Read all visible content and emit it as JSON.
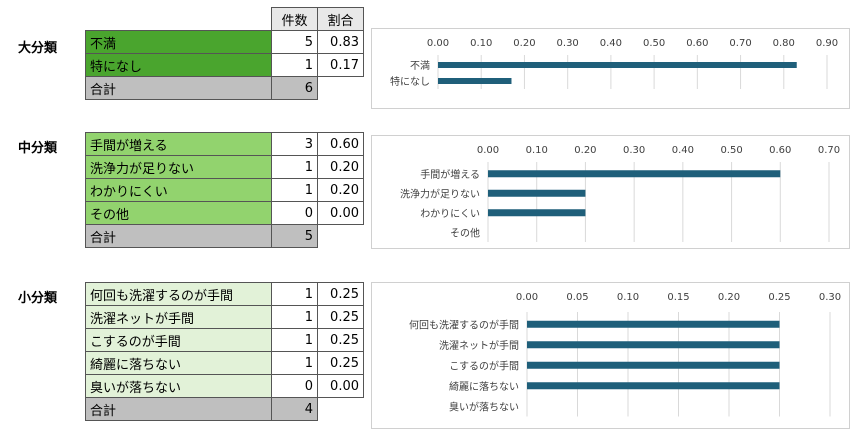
{
  "colors": {
    "dark_green": "#4aa52e",
    "mid_green": "#92d36e",
    "light_green": "#e2f2d8",
    "total_gray": "#bfbfbf",
    "bar": "#1f5f7a"
  },
  "header": {
    "count": "件数",
    "ratio": "割合"
  },
  "large": {
    "label": "大分類",
    "rows": [
      {
        "name": "不満",
        "count": "5",
        "ratio": "0.83"
      },
      {
        "name": "特になし",
        "count": "1",
        "ratio": "0.17"
      }
    ],
    "total_label": "合計",
    "total": "6"
  },
  "middle": {
    "label": "中分類",
    "rows": [
      {
        "name": "手間が増える",
        "count": "3",
        "ratio": "0.60"
      },
      {
        "name": "洗浄力が足りない",
        "count": "1",
        "ratio": "0.20"
      },
      {
        "name": "わかりにくい",
        "count": "1",
        "ratio": "0.20"
      },
      {
        "name": "その他",
        "count": "0",
        "ratio": "0.00"
      }
    ],
    "total_label": "合計",
    "total": "5"
  },
  "small": {
    "label": "小分類",
    "rows": [
      {
        "name": "何回も洗濯するのが手間",
        "count": "1",
        "ratio": "0.25"
      },
      {
        "name": "洗濯ネットが手間",
        "count": "1",
        "ratio": "0.25"
      },
      {
        "name": "こするのが手間",
        "count": "1",
        "ratio": "0.25"
      },
      {
        "name": "綺麗に落ちない",
        "count": "1",
        "ratio": "0.25"
      },
      {
        "name": "臭いが落ちない",
        "count": "0",
        "ratio": "0.00"
      }
    ],
    "total_label": "合計",
    "total": "4"
  },
  "chart_data": [
    {
      "type": "bar",
      "orientation": "horizontal",
      "categories": [
        "不満",
        "特になし"
      ],
      "values": [
        0.83,
        0.17
      ],
      "xlim": [
        0,
        0.9
      ],
      "ticks": [
        "0.00",
        "0.10",
        "0.20",
        "0.30",
        "0.40",
        "0.50",
        "0.60",
        "0.70",
        "0.80",
        "0.90"
      ],
      "grid": true
    },
    {
      "type": "bar",
      "orientation": "horizontal",
      "categories": [
        "手間が増える",
        "洗浄力が足りない",
        "わかりにくい",
        "その他"
      ],
      "values": [
        0.6,
        0.2,
        0.2,
        0.0
      ],
      "xlim": [
        0,
        0.7
      ],
      "ticks": [
        "0.00",
        "0.10",
        "0.20",
        "0.30",
        "0.40",
        "0.50",
        "0.60",
        "0.70"
      ],
      "grid": true
    },
    {
      "type": "bar",
      "orientation": "horizontal",
      "categories": [
        "何回も洗濯するのが手間",
        "洗濯ネットが手間",
        "こするのが手間",
        "綺麗に落ちない",
        "臭いが落ちない"
      ],
      "values": [
        0.25,
        0.25,
        0.25,
        0.25,
        0.0
      ],
      "xlim": [
        0,
        0.3
      ],
      "ticks": [
        "0.00",
        "0.05",
        "0.10",
        "0.15",
        "0.20",
        "0.25",
        "0.30"
      ],
      "grid": true
    }
  ]
}
